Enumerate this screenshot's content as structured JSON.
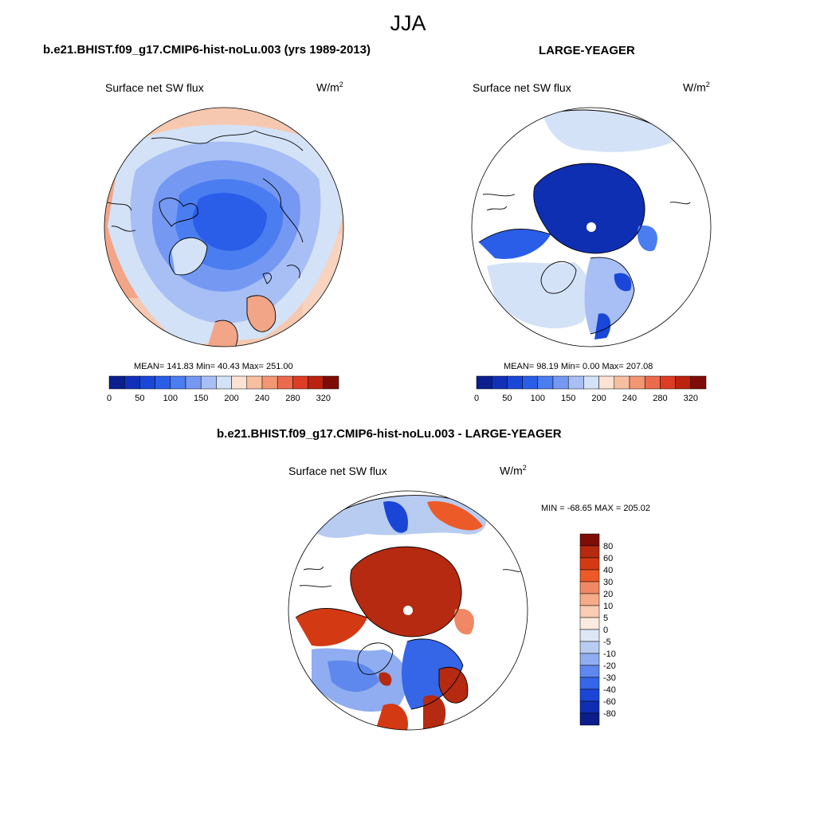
{
  "season": "JJA",
  "units_base": "W/m",
  "units_exp": "2",
  "panels": {
    "left": {
      "title": "b.e21.BHIST.f09_g17.CMIP6-hist-noLu.003 (yrs 1989-2013)",
      "variable": "Surface net SW flux",
      "stats": "MEAN= 141.83  Min=  40.43  Max= 251.00"
    },
    "right": {
      "title": "LARGE-YEAGER",
      "variable": "Surface net SW flux",
      "stats": "MEAN=  98.19  Min=   0.00  Max= 207.08"
    },
    "diff": {
      "title": "b.e21.BHIST.f09_g17.CMIP6-hist-noLu.003 - LARGE-YEAGER",
      "variable": "Surface net SW flux",
      "stats": "MIN = -68.65 MAX = 205.02"
    }
  },
  "abs_colorbar": {
    "colors": [
      "#0b1f8e",
      "#1030b8",
      "#1a47d8",
      "#2a5ee8",
      "#4a7df0",
      "#7599f2",
      "#a7bff5",
      "#d4e2f7",
      "#fbe2d2",
      "#f7bfa0",
      "#f29674",
      "#ec6a4e",
      "#dd3d24",
      "#bb2210",
      "#7e0d08"
    ],
    "labels": [
      "0",
      "50",
      "100",
      "150",
      "200",
      "240",
      "280",
      "320"
    ]
  },
  "diff_colorbar": {
    "colors": [
      "#7e0d08",
      "#b52a10",
      "#d33a14",
      "#ec5a28",
      "#f08866",
      "#f5aa88",
      "#f9cdb3",
      "#fbeae0",
      "#dde7f6",
      "#b8ccf2",
      "#8fadf0",
      "#5f88ee",
      "#3566e8",
      "#1a46d8",
      "#0f2fb2",
      "#0a1d8a"
    ],
    "labels": [
      "80",
      "60",
      "40",
      "30",
      "20",
      "10",
      "5",
      "0",
      "-5",
      "-10",
      "-20",
      "-30",
      "-40",
      "-60",
      "-80"
    ]
  }
}
